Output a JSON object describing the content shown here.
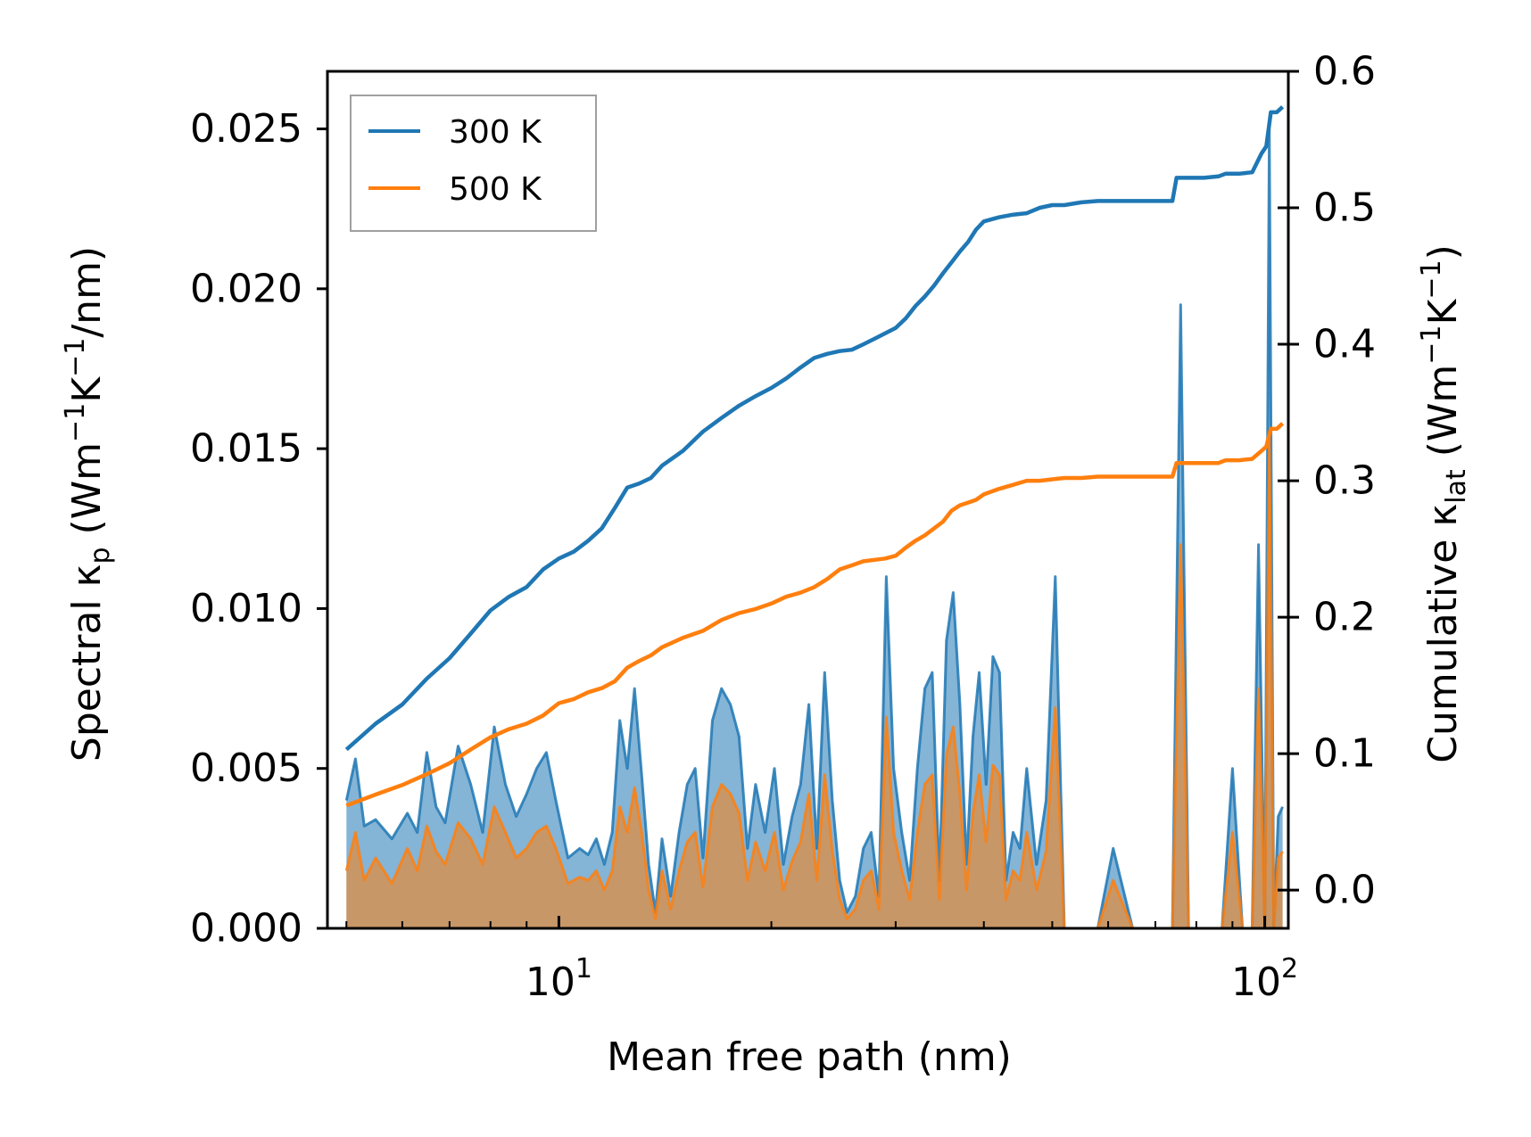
{
  "chart_data": {
    "type": "line",
    "xlabel": "Mean free path (nm)",
    "ylabel_left": {
      "main": "Spectral κ",
      "sub": "p",
      "unit_open": " (Wm",
      "exp1": "−1",
      "mid": "K",
      "exp2": "−1",
      "unit_close": "/nm)"
    },
    "ylabel_right": {
      "main": "Cumulative κ",
      "sub": "lat",
      "unit_open": " (Wm",
      "exp1": "−1",
      "mid": "K",
      "exp2": "−1",
      "unit_close": ")"
    },
    "xscale": "log",
    "xlim": [
      4.7,
      108
    ],
    "ylim_left": [
      0,
      0.0268
    ],
    "ylim_right": [
      -0.028,
      0.6
    ],
    "x_ticks": [
      {
        "value": 10,
        "base": "10",
        "exp": "1"
      },
      {
        "value": 100,
        "base": "10",
        "exp": "2"
      }
    ],
    "y_left_ticks": [
      {
        "value": 0.0,
        "label": "0.000"
      },
      {
        "value": 0.005,
        "label": "0.005"
      },
      {
        "value": 0.01,
        "label": "0.010"
      },
      {
        "value": 0.015,
        "label": "0.015"
      },
      {
        "value": 0.02,
        "label": "0.020"
      },
      {
        "value": 0.025,
        "label": "0.025"
      }
    ],
    "y_right_ticks": [
      {
        "value": 0.0,
        "label": "0.0"
      },
      {
        "value": 0.1,
        "label": "0.1"
      },
      {
        "value": 0.2,
        "label": "0.2"
      },
      {
        "value": 0.3,
        "label": "0.3"
      },
      {
        "value": 0.4,
        "label": "0.4"
      },
      {
        "value": 0.5,
        "label": "0.5"
      },
      {
        "value": 0.6,
        "label": "0.6"
      }
    ],
    "legend": {
      "position": "top-left",
      "entries": [
        {
          "label": "300 K",
          "color": "#1f77b4"
        },
        {
          "label": "500 K",
          "color": "#ff7f0e"
        }
      ]
    },
    "series": [
      {
        "name": "300 K",
        "color": "#1f77b4",
        "spectral": {
          "x": [
            5.0,
            5.15,
            5.3,
            5.5,
            5.8,
            6.1,
            6.3,
            6.5,
            6.7,
            6.9,
            7.2,
            7.5,
            7.8,
            8.1,
            8.4,
            8.7,
            9.0,
            9.3,
            9.6,
            9.9,
            10.3,
            10.7,
            11.0,
            11.3,
            11.6,
            11.9,
            12.2,
            12.5,
            12.8,
            13.1,
            13.4,
            13.7,
            14.0,
            14.4,
            14.8,
            15.2,
            15.6,
            16.0,
            16.5,
            17.0,
            17.5,
            18.0,
            18.5,
            19.0,
            19.6,
            20.2,
            20.8,
            21.4,
            22.0,
            22.6,
            23.2,
            23.8,
            24.4,
            25.0,
            25.6,
            26.3,
            27.0,
            27.7,
            28.4,
            29.1,
            29.8,
            30.6,
            31.4,
            32.2,
            33.0,
            33.8,
            34.6,
            35.4,
            36.2,
            37.0,
            37.8,
            38.6,
            39.4,
            40.3,
            41.2,
            42.1,
            43.0,
            44.0,
            45.0,
            46.0,
            47.5,
            49.0,
            50.5,
            52.0,
            55.0,
            58.0,
            61.0,
            65.0,
            70.0,
            74.0,
            76.0,
            78.0,
            80.0,
            83.0,
            85.0,
            87.0,
            90.0,
            93.0,
            96.0,
            98.0,
            100.0,
            101.5,
            103.0,
            104.5,
            106.0
          ],
          "y": [
            0.004,
            0.0053,
            0.0032,
            0.0034,
            0.0028,
            0.0036,
            0.003,
            0.0055,
            0.0038,
            0.0033,
            0.0057,
            0.0045,
            0.003,
            0.0063,
            0.0045,
            0.0035,
            0.0042,
            0.005,
            0.0055,
            0.004,
            0.0022,
            0.0025,
            0.0023,
            0.0028,
            0.002,
            0.003,
            0.0065,
            0.005,
            0.0075,
            0.0048,
            0.002,
            0.0005,
            0.0028,
            0.001,
            0.003,
            0.0045,
            0.005,
            0.0022,
            0.0065,
            0.0075,
            0.007,
            0.006,
            0.0025,
            0.0045,
            0.003,
            0.005,
            0.002,
            0.0035,
            0.0045,
            0.007,
            0.0025,
            0.008,
            0.004,
            0.0015,
            0.0005,
            0.001,
            0.0025,
            0.003,
            0.001,
            0.011,
            0.005,
            0.003,
            0.0015,
            0.005,
            0.0075,
            0.008,
            0.0015,
            0.009,
            0.0105,
            0.007,
            0.002,
            0.006,
            0.008,
            0.0045,
            0.0085,
            0.008,
            0.0015,
            0.003,
            0.0025,
            0.005,
            0.002,
            0.004,
            0.011,
            0.0,
            0.0,
            0.0,
            0.0025,
            0.0,
            0.0,
            0.0,
            0.0195,
            0.0,
            0.0,
            0.0,
            0.0,
            0.0,
            0.005,
            0.0,
            0.0,
            0.012,
            0.0,
            0.025,
            0.0,
            0.0035,
            0.0038
          ]
        },
        "cumulative": {
          "x": [
            5.0,
            5.5,
            6.0,
            6.5,
            7.0,
            7.5,
            8.0,
            8.5,
            9.0,
            9.5,
            10.0,
            10.5,
            11.0,
            11.5,
            12.0,
            12.5,
            13.0,
            13.5,
            14.0,
            15.0,
            16.0,
            17.0,
            18.0,
            19.0,
            20.0,
            21.0,
            22.0,
            23.0,
            24.0,
            25.0,
            26.0,
            27.0,
            28.0,
            29.0,
            30.0,
            31.0,
            32.0,
            33.0,
            34.0,
            35.0,
            36.0,
            37.0,
            38.0,
            39.0,
            40.0,
            42.0,
            44.0,
            46.0,
            48.0,
            50.0,
            52.0,
            55.0,
            58.0,
            62.0,
            66.0,
            70.0,
            74.0,
            75.0,
            78.0,
            82.0,
            86.0,
            88.0,
            92.0,
            96.0,
            99.0,
            100.5,
            102.0,
            104.0,
            106.0
          ],
          "y": [
            0.103,
            0.122,
            0.136,
            0.155,
            0.17,
            0.188,
            0.205,
            0.215,
            0.222,
            0.235,
            0.243,
            0.248,
            0.256,
            0.265,
            0.28,
            0.295,
            0.298,
            0.302,
            0.311,
            0.322,
            0.336,
            0.346,
            0.355,
            0.362,
            0.368,
            0.375,
            0.383,
            0.39,
            0.393,
            0.395,
            0.396,
            0.4,
            0.404,
            0.408,
            0.412,
            0.419,
            0.428,
            0.435,
            0.443,
            0.452,
            0.46,
            0.468,
            0.475,
            0.484,
            0.49,
            0.493,
            0.495,
            0.496,
            0.5,
            0.502,
            0.502,
            0.504,
            0.505,
            0.505,
            0.505,
            0.505,
            0.505,
            0.522,
            0.522,
            0.522,
            0.523,
            0.525,
            0.525,
            0.526,
            0.54,
            0.545,
            0.57,
            0.57,
            0.574
          ]
        }
      },
      {
        "name": "500 K",
        "color": "#ff7f0e",
        "spectral": {
          "x": [
            5.0,
            5.15,
            5.3,
            5.5,
            5.8,
            6.1,
            6.3,
            6.5,
            6.7,
            6.9,
            7.2,
            7.5,
            7.8,
            8.1,
            8.4,
            8.7,
            9.0,
            9.3,
            9.6,
            9.9,
            10.3,
            10.7,
            11.0,
            11.3,
            11.6,
            11.9,
            12.2,
            12.5,
            12.8,
            13.1,
            13.4,
            13.7,
            14.0,
            14.4,
            14.8,
            15.2,
            15.6,
            16.0,
            16.5,
            17.0,
            17.5,
            18.0,
            18.5,
            19.0,
            19.6,
            20.2,
            20.8,
            21.4,
            22.0,
            22.6,
            23.2,
            23.8,
            24.4,
            25.0,
            25.6,
            26.3,
            27.0,
            27.7,
            28.4,
            29.1,
            29.8,
            30.6,
            31.4,
            32.2,
            33.0,
            33.8,
            34.6,
            35.4,
            36.2,
            37.0,
            37.8,
            38.6,
            39.4,
            40.3,
            41.2,
            42.1,
            43.0,
            44.0,
            45.0,
            46.0,
            47.5,
            49.0,
            50.5,
            52.0,
            55.0,
            58.0,
            61.0,
            65.0,
            70.0,
            74.0,
            76.0,
            78.0,
            80.0,
            83.0,
            85.0,
            87.0,
            90.0,
            93.0,
            96.0,
            98.0,
            100.0,
            101.5,
            103.0,
            104.5,
            106.0
          ],
          "y": [
            0.0018,
            0.003,
            0.0015,
            0.0022,
            0.0014,
            0.0025,
            0.0018,
            0.0032,
            0.0024,
            0.002,
            0.0033,
            0.0028,
            0.002,
            0.0038,
            0.003,
            0.0022,
            0.0025,
            0.003,
            0.0032,
            0.0025,
            0.0014,
            0.0016,
            0.0015,
            0.0018,
            0.0012,
            0.0018,
            0.0038,
            0.003,
            0.0044,
            0.003,
            0.0012,
            0.0003,
            0.0018,
            0.0006,
            0.0018,
            0.0027,
            0.003,
            0.0013,
            0.0038,
            0.0045,
            0.0042,
            0.0036,
            0.0015,
            0.0027,
            0.0018,
            0.003,
            0.0012,
            0.0021,
            0.0027,
            0.0042,
            0.0015,
            0.0048,
            0.0024,
            0.0009,
            0.0003,
            0.0006,
            0.0015,
            0.0018,
            0.0006,
            0.0066,
            0.003,
            0.0018,
            0.0009,
            0.003,
            0.0045,
            0.0048,
            0.0009,
            0.0054,
            0.0063,
            0.0042,
            0.0012,
            0.0036,
            0.0048,
            0.0027,
            0.0051,
            0.0048,
            0.0009,
            0.0018,
            0.0015,
            0.003,
            0.0012,
            0.0024,
            0.0069,
            0.0,
            0.0,
            0.0,
            0.0015,
            0.0,
            0.0,
            0.0,
            0.012,
            0.0,
            0.0,
            0.0,
            0.0,
            0.0,
            0.003,
            0.0,
            0.0,
            0.0075,
            0.0,
            0.0155,
            0.0,
            0.0022,
            0.0024
          ]
        },
        "cumulative": {
          "x": [
            5.0,
            5.5,
            6.0,
            6.5,
            7.0,
            7.5,
            8.0,
            8.5,
            9.0,
            9.5,
            10.0,
            10.5,
            11.0,
            11.5,
            12.0,
            12.5,
            13.0,
            13.5,
            14.0,
            15.0,
            16.0,
            17.0,
            18.0,
            19.0,
            20.0,
            21.0,
            22.0,
            23.0,
            24.0,
            25.0,
            26.0,
            27.0,
            28.0,
            29.0,
            30.0,
            31.0,
            32.0,
            33.0,
            34.0,
            35.0,
            36.0,
            37.0,
            38.0,
            39.0,
            40.0,
            42.0,
            44.0,
            46.0,
            48.0,
            50.0,
            52.0,
            55.0,
            58.0,
            62.0,
            66.0,
            70.0,
            74.0,
            75.0,
            78.0,
            82.0,
            86.0,
            88.0,
            92.0,
            96.0,
            99.0,
            100.5,
            102.0,
            104.0,
            106.0
          ],
          "y": [
            0.062,
            0.07,
            0.077,
            0.085,
            0.093,
            0.103,
            0.112,
            0.118,
            0.122,
            0.128,
            0.137,
            0.14,
            0.145,
            0.148,
            0.153,
            0.163,
            0.168,
            0.172,
            0.178,
            0.185,
            0.19,
            0.198,
            0.203,
            0.206,
            0.21,
            0.215,
            0.218,
            0.222,
            0.228,
            0.235,
            0.238,
            0.241,
            0.242,
            0.243,
            0.245,
            0.251,
            0.256,
            0.26,
            0.265,
            0.27,
            0.278,
            0.282,
            0.284,
            0.286,
            0.29,
            0.294,
            0.297,
            0.3,
            0.3,
            0.301,
            0.302,
            0.302,
            0.303,
            0.303,
            0.303,
            0.303,
            0.303,
            0.313,
            0.313,
            0.313,
            0.313,
            0.315,
            0.315,
            0.316,
            0.322,
            0.325,
            0.338,
            0.338,
            0.342
          ]
        }
      }
    ]
  }
}
